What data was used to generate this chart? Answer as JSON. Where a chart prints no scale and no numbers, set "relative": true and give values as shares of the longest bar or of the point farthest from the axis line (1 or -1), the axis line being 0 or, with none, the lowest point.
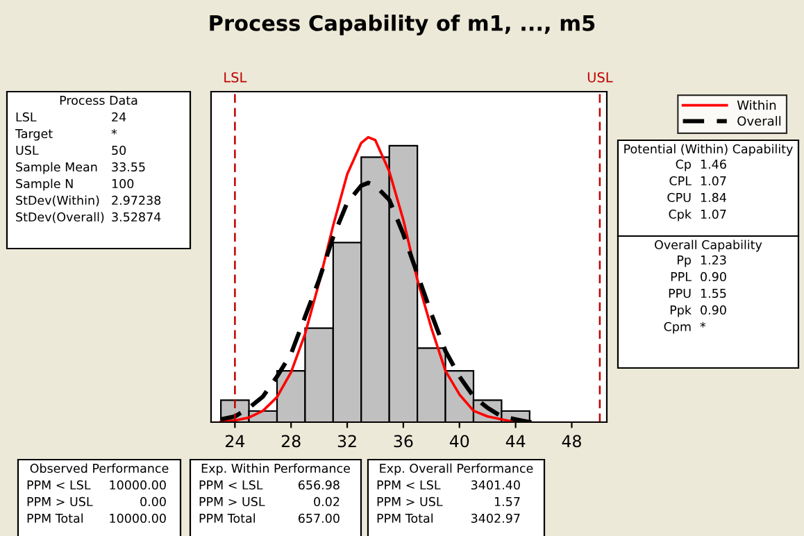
{
  "chart_data": {
    "type": "histogram",
    "title": "Process Capability of m1, ..., m5",
    "relative": true,
    "bins": [
      23,
      25,
      27,
      29,
      31,
      33,
      35,
      37,
      39,
      41,
      43,
      45
    ],
    "values": [
      0.077,
      0.039,
      0.18,
      0.33,
      0.63,
      0.93,
      0.97,
      0.26,
      0.18,
      0.077,
      0.039
    ],
    "color": "#c0c0c0",
    "series": [
      {
        "type": "line",
        "name": "Within",
        "color": "#ff0000",
        "line_style": "solid",
        "x": [
          23,
          24,
          25,
          26,
          27,
          28,
          29,
          30,
          31,
          32,
          33,
          33.5,
          34,
          35,
          36,
          37,
          38,
          39,
          40,
          41,
          42,
          43,
          44,
          45
        ],
        "values": [
          0.002,
          0.006,
          0.016,
          0.04,
          0.088,
          0.175,
          0.31,
          0.49,
          0.69,
          0.87,
          0.98,
          1,
          0.99,
          0.88,
          0.71,
          0.5,
          0.33,
          0.18,
          0.097,
          0.04,
          0.02,
          0.01,
          0.0,
          0.0
        ]
      },
      {
        "type": "line",
        "name": "Overall",
        "color": "#000000",
        "line_style": "dashed",
        "x": [
          23,
          24,
          25,
          26,
          27,
          28,
          29,
          30,
          31,
          32,
          33,
          33.5,
          34,
          35,
          36,
          37,
          38,
          39,
          40,
          41,
          42,
          43,
          44,
          45,
          46
        ],
        "values": [
          0.01,
          0.02,
          0.05,
          0.09,
          0.16,
          0.24,
          0.37,
          0.5,
          0.65,
          0.77,
          0.83,
          0.84,
          0.83,
          0.78,
          0.66,
          0.52,
          0.38,
          0.25,
          0.16,
          0.09,
          0.05,
          0.02,
          0.01,
          0.0,
          0.0
        ]
      }
    ],
    "xlim": [
      22.3,
      50.5
    ],
    "xticks": [
      24,
      28,
      32,
      36,
      40,
      44,
      48
    ],
    "ref_lines": [
      {
        "axis": "x",
        "value": 24,
        "label": "LSL",
        "color": "#c00000",
        "line_style": "dashed"
      },
      {
        "axis": "x",
        "value": 50,
        "label": "USL",
        "color": "#c00000",
        "line_style": "dashed"
      }
    ],
    "legend": "top right",
    "grid": false,
    "annotations": [
      "Process Data\nLSL 24\nTarget *\nUSL 50\nSample Mean 33.55\nSample N 100\nStDev(Within) 2.97238\nStDev(Overall) 3.52874",
      "Potential (Within) Capability\nCp 1.46\nCPL 1.07\nCPU 1.84\nCpk 1.07",
      "Overall Capability\nPp 1.23\nPPL 0.90\nPPU 1.55\nPpk 0.90\nCpm *",
      "Observed Performance\nPPM < LSL 10000.00\nPPM > USL 0.00\nPPM Total 10000.00",
      "Exp. Within Performance\nPPM < LSL 656.98\nPPM > USL 0.02\nPPM Total 657.00",
      "Exp. Overall Performance\nPPM < LSL 3401.40\nPPM > USL 1.57\nPPM Total 3402.97"
    ]
  }
}
